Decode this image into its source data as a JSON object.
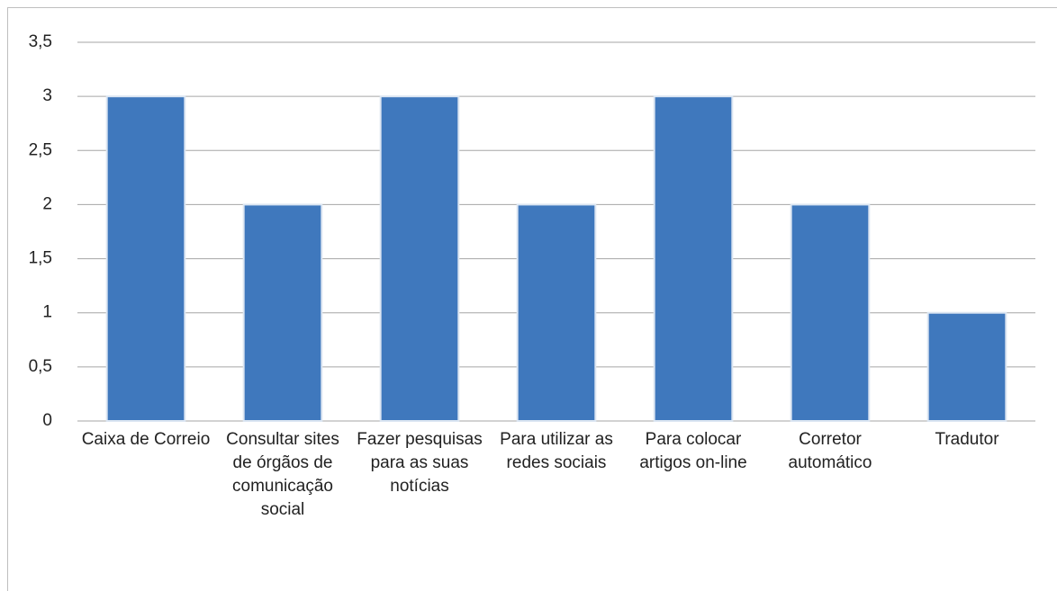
{
  "chart_data": {
    "type": "bar",
    "categories": [
      "Caixa de Correio",
      "Consultar sites de órgãos de comunicação social",
      "Fazer pesquisas para as suas notícias",
      "Para utilizar as redes sociais",
      "Para colocar artigos on-line",
      "Corretor automático",
      "Tradutor"
    ],
    "values": [
      3,
      2,
      3,
      2,
      3,
      2,
      1
    ],
    "color": "#3f78bd",
    "ylim": [
      0,
      3.5
    ],
    "yticks": [
      0,
      {
        "value": 0.5,
        "label": "0,5"
      },
      1,
      {
        "value": 1.5,
        "label": "1,5"
      },
      2,
      {
        "value": 2.5,
        "label": "2,5"
      },
      3,
      {
        "value": 3.5,
        "label": "3,5"
      }
    ],
    "grid": true
  }
}
